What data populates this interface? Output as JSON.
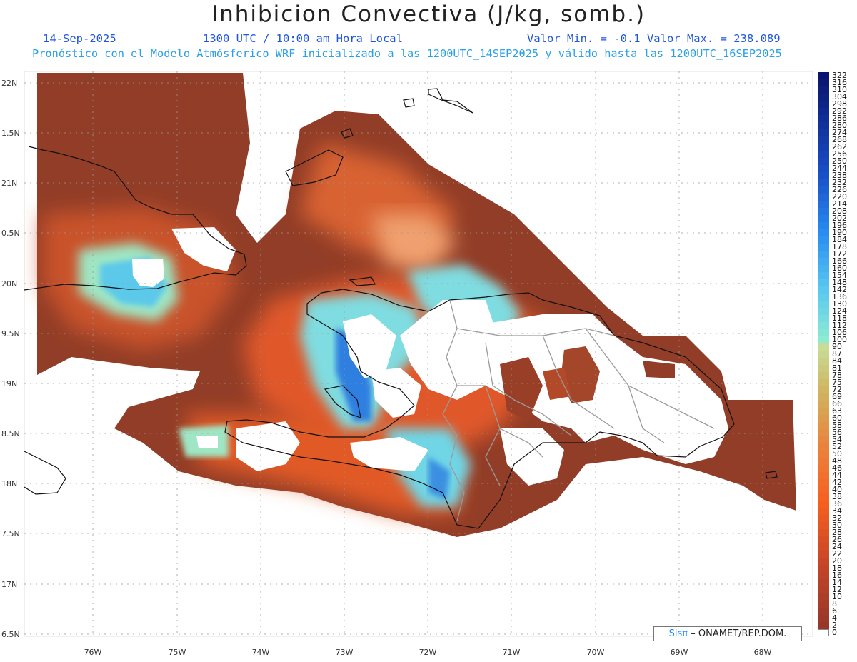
{
  "header": {
    "title": "Inhibicion Convectiva (J/kg, somb.)",
    "date": "14-Sep-2025",
    "time": "1300 UTC / 10:00 am Hora Local",
    "minmax": "Valor Min. = -0.1  Valor Max. = 238.089",
    "forecast": "Pronóstico con el Modelo Atmósferico WRF inicializado a las 1200UTC_14SEP2025 y válido hasta las  1200UTC_16SEP2025"
  },
  "axes": {
    "lat_labels": [
      "22N",
      "1.5N",
      "21N",
      "0.5N",
      "20N",
      "9.5N",
      "19N",
      "8.5N",
      "18N",
      "7.5N",
      "17N",
      "6.5N"
    ],
    "lon_labels": [
      "76W",
      "75W",
      "74W",
      "73W",
      "72W",
      "71W",
      "70W",
      "69W",
      "68W"
    ]
  },
  "legend": {
    "labels": [
      "322",
      "316",
      "310",
      "304",
      "298",
      "292",
      "286",
      "280",
      "274",
      "268",
      "262",
      "256",
      "250",
      "244",
      "238",
      "232",
      "226",
      "220",
      "214",
      "208",
      "202",
      "196",
      "190",
      "184",
      "178",
      "172",
      "166",
      "160",
      "154",
      "148",
      "142",
      "136",
      "130",
      "124",
      "118",
      "112",
      "106",
      "100",
      "90",
      "87",
      "84",
      "81",
      "78",
      "75",
      "72",
      "69",
      "66",
      "63",
      "60",
      "58",
      "56",
      "54",
      "52",
      "50",
      "48",
      "46",
      "44",
      "42",
      "40",
      "38",
      "36",
      "34",
      "32",
      "30",
      "28",
      "26",
      "24",
      "22",
      "20",
      "18",
      "16",
      "14",
      "12",
      "10",
      "8",
      "6",
      "4",
      "2",
      "0"
    ]
  },
  "credit": {
    "brand": "Sisπ",
    "text": "– ONAMET/REP.DOM."
  },
  "colors": {
    "base_dark": "#8e3a26",
    "mid_orange": "#e8582a",
    "light_orange": "#f4a06a",
    "green": "#a9ecc0",
    "cyan": "#5fd0ea",
    "blue": "#1f6ee0"
  }
}
